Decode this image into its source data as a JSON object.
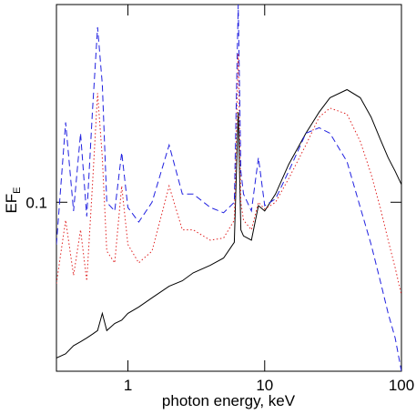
{
  "chart_data": {
    "type": "line",
    "x_label": "photon energy, keV",
    "y_label": {
      "main": "EF",
      "sub": "E"
    },
    "log_x": true,
    "log_y": true,
    "xlim": [
      0.3,
      100
    ],
    "ylim": [
      0.037,
      0.32
    ],
    "xticks": [
      1,
      10,
      100
    ],
    "yticks": [
      0.1
    ],
    "x": [
      0.3,
      0.35,
      0.4,
      0.45,
      0.5,
      0.55,
      0.6,
      0.65,
      0.7,
      0.8,
      0.9,
      1,
      1.2,
      1.5,
      2,
      2.5,
      3,
      4,
      5,
      6,
      6.4,
      6.7,
      7,
      8,
      9,
      10,
      12,
      15,
      20,
      25,
      30,
      40,
      50,
      60,
      70,
      80,
      90,
      100
    ],
    "series": [
      {
        "color": "#000000",
        "linestyle": "solid",
        "values": [
          0.04,
          0.041,
          0.043,
          0.044,
          0.045,
          0.046,
          0.047,
          0.052,
          0.047,
          0.049,
          0.05,
          0.052,
          0.054,
          0.057,
          0.061,
          0.063,
          0.066,
          0.069,
          0.072,
          0.079,
          0.17,
          0.085,
          0.082,
          0.08,
          0.098,
          0.095,
          0.105,
          0.125,
          0.15,
          0.17,
          0.185,
          0.194,
          0.185,
          0.165,
          0.145,
          0.13,
          0.12,
          0.111
        ]
      },
      {
        "color": "#e02020",
        "linestyle": "dotted",
        "values": [
          0.062,
          0.09,
          0.065,
          0.085,
          0.063,
          0.11,
          0.19,
          0.13,
          0.075,
          0.07,
          0.11,
          0.078,
          0.07,
          0.075,
          0.11,
          0.085,
          0.085,
          0.08,
          0.081,
          0.09,
          0.24,
          0.1,
          0.09,
          0.085,
          0.1,
          0.096,
          0.1,
          0.115,
          0.14,
          0.165,
          0.174,
          0.168,
          0.143,
          0.118,
          0.097,
          0.08,
          0.068,
          0.058
        ]
      },
      {
        "color": "#2020e0",
        "linestyle": "dashed",
        "values": [
          0.078,
          0.16,
          0.095,
          0.15,
          0.092,
          0.17,
          0.28,
          0.2,
          0.1,
          0.095,
          0.134,
          0.097,
          0.089,
          0.1,
          0.14,
          0.105,
          0.105,
          0.097,
          0.094,
          0.1,
          0.32,
          0.12,
          0.105,
          0.095,
          0.13,
          0.098,
          0.102,
          0.12,
          0.15,
          0.155,
          0.15,
          0.127,
          0.097,
          0.078,
          0.063,
          0.052,
          0.045,
          0.037
        ]
      }
    ]
  }
}
